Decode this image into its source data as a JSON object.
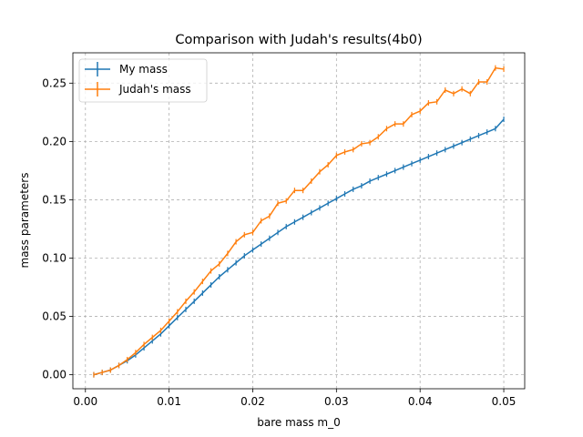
{
  "chart_data": {
    "type": "line",
    "title": "Comparison with Judah's results(4b0)",
    "xlabel": "bare mass m_0",
    "ylabel": "mass parameters",
    "xlim": [
      -0.0015,
      0.0525
    ],
    "ylim": [
      -0.012,
      0.276
    ],
    "xticks": [
      0.0,
      0.01,
      0.02,
      0.03,
      0.04,
      0.05
    ],
    "xtick_labels": [
      "0.00",
      "0.01",
      "0.02",
      "0.03",
      "0.04",
      "0.05"
    ],
    "yticks": [
      0.0,
      0.05,
      0.1,
      0.15,
      0.2,
      0.25
    ],
    "ytick_labels": [
      "0.00",
      "0.05",
      "0.10",
      "0.15",
      "0.20",
      "0.25"
    ],
    "grid": true,
    "legend": "top-left",
    "x": [
      0.001,
      0.002,
      0.003,
      0.004,
      0.005,
      0.006,
      0.007,
      0.008,
      0.009,
      0.01,
      0.011,
      0.012,
      0.013,
      0.014,
      0.015,
      0.016,
      0.017,
      0.018,
      0.019,
      0.02,
      0.021,
      0.022,
      0.023,
      0.024,
      0.025,
      0.026,
      0.027,
      0.028,
      0.029,
      0.03,
      0.031,
      0.032,
      0.033,
      0.034,
      0.035,
      0.036,
      0.037,
      0.038,
      0.039,
      0.04,
      0.041,
      0.042,
      0.043,
      0.044,
      0.045,
      0.046,
      0.047,
      0.048,
      0.049,
      0.05
    ],
    "series": [
      {
        "name": "My mass",
        "color": "#1f77b4",
        "values": [
          0.0,
          0.002,
          0.004,
          0.008,
          0.012,
          0.017,
          0.023,
          0.029,
          0.035,
          0.042,
          0.049,
          0.056,
          0.063,
          0.07,
          0.077,
          0.084,
          0.09,
          0.096,
          0.102,
          0.107,
          0.112,
          0.117,
          0.122,
          0.127,
          0.131,
          0.135,
          0.139,
          0.143,
          0.147,
          0.151,
          0.155,
          0.159,
          0.162,
          0.166,
          0.169,
          0.172,
          0.175,
          0.178,
          0.181,
          0.184,
          0.187,
          0.19,
          0.193,
          0.196,
          0.199,
          0.202,
          0.205,
          0.208,
          0.211,
          0.219
        ]
      },
      {
        "name": "Judah's mass",
        "color": "#ff7f0e",
        "values": [
          0.0,
          0.002,
          0.004,
          0.008,
          0.013,
          0.019,
          0.026,
          0.032,
          0.038,
          0.046,
          0.054,
          0.063,
          0.071,
          0.08,
          0.089,
          0.095,
          0.104,
          0.114,
          0.12,
          0.122,
          0.132,
          0.136,
          0.147,
          0.149,
          0.158,
          0.158,
          0.166,
          0.174,
          0.18,
          0.188,
          0.191,
          0.193,
          0.198,
          0.199,
          0.204,
          0.211,
          0.215,
          0.215,
          0.223,
          0.226,
          0.233,
          0.234,
          0.244,
          0.241,
          0.245,
          0.241,
          0.251,
          0.251,
          0.263,
          0.262
        ]
      }
    ]
  }
}
